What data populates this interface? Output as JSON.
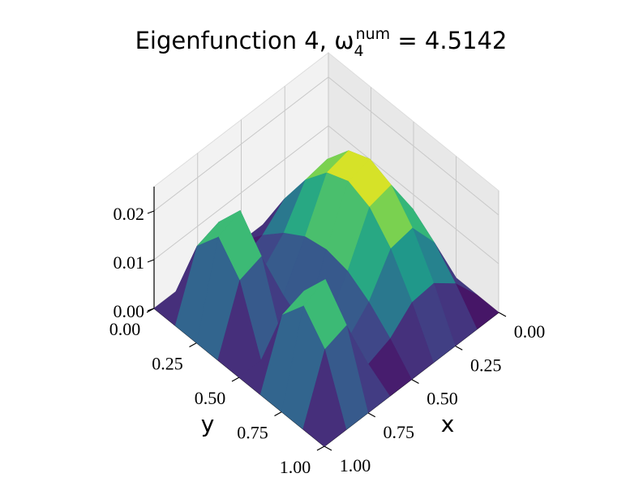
{
  "chart_data": {
    "type": "surface",
    "title": {
      "text": "Eigenfunction 4, ω",
      "sub": "4",
      "sup": "num",
      "rest": " = 4.5142"
    },
    "xlabel": "x",
    "ylabel": "y",
    "colormap": "viridis",
    "x": [
      0,
      0.125,
      0.25,
      0.375,
      0.5,
      0.625,
      0.75,
      0.875,
      1
    ],
    "y": [
      0,
      0.125,
      0.25,
      0.375,
      0.5,
      0.625,
      0.75,
      0.875,
      1
    ],
    "z": [
      [
        0,
        0,
        0,
        0,
        0,
        0,
        0,
        0,
        0
      ],
      [
        0,
        0.0058,
        0.0093,
        0.0088,
        0.0048,
        0.003,
        0.0144,
        0.0129,
        0
      ],
      [
        0,
        0.0107,
        0.0171,
        0.0163,
        0.0088,
        0.0043,
        0.0203,
        0.0183,
        0
      ],
      [
        0,
        0.014,
        0.0224,
        0.0213,
        0.0116,
        0.003,
        0.0144,
        0.0129,
        0
      ],
      [
        0,
        0.0152,
        0.0242,
        0.0231,
        0.0125,
        0,
        0,
        0,
        0
      ],
      [
        0,
        0.014,
        0.0224,
        0.0213,
        0.0116,
        0.003,
        0.0144,
        0.0129,
        0
      ],
      [
        0,
        0.0107,
        0.0171,
        0.0163,
        0.0088,
        0.0043,
        0.0203,
        0.0183,
        0
      ],
      [
        0,
        0.0058,
        0.0093,
        0.0088,
        0.0048,
        0.003,
        0.0144,
        0.0129,
        0
      ],
      [
        0,
        0,
        0,
        0,
        0,
        0,
        0,
        0,
        0
      ]
    ],
    "xlim": [
      0,
      1
    ],
    "ylim": [
      0,
      1
    ],
    "zlim": [
      0,
      0.025
    ],
    "xticks": [
      {
        "value": 0,
        "label": "0.00"
      },
      {
        "value": 0.25,
        "label": "0.25"
      },
      {
        "value": 0.5,
        "label": "0.50"
      },
      {
        "value": 0.75,
        "label": "0.75"
      },
      {
        "value": 1,
        "label": "1.00"
      }
    ],
    "yticks": [
      {
        "value": 0,
        "label": "0.00"
      },
      {
        "value": 0.25,
        "label": "0.25"
      },
      {
        "value": 0.5,
        "label": "0.50"
      },
      {
        "value": 0.75,
        "label": "0.75"
      },
      {
        "value": 1,
        "label": "1.00"
      }
    ],
    "zticks": [
      {
        "value": 0,
        "label": "0.00"
      },
      {
        "value": 0.01,
        "label": "0.01"
      },
      {
        "value": 0.02,
        "label": "0.02"
      }
    ],
    "grid": true
  }
}
